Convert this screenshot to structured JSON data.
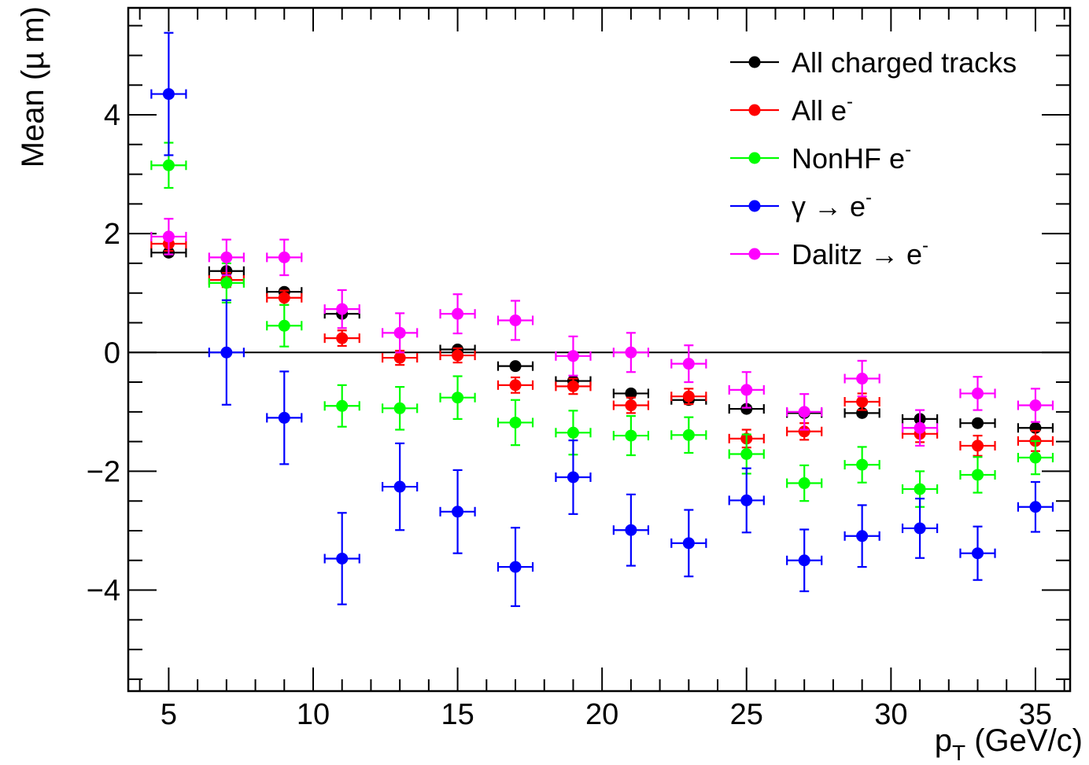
{
  "chart_data": {
    "type": "scatter",
    "xlabel": "p",
    "xlabel_sub": "T",
    "xlabel_unit": " (GeV/c)",
    "ylabel": "Mean (µ m)",
    "xlim": [
      3.6,
      36.2
    ],
    "ylim": [
      -5.7,
      5.8
    ],
    "grid": false,
    "legend_position": "top-right",
    "x_ticks": [
      5,
      10,
      15,
      20,
      25,
      30,
      35
    ],
    "x_tick_labels": [
      "5",
      "10",
      "15",
      "20",
      "25",
      "30",
      "35"
    ],
    "y_ticks": [
      -4,
      -2,
      0,
      2,
      4
    ],
    "y_tick_labels": [
      "−4",
      "−2",
      "0",
      "2",
      "4"
    ],
    "zero_line": true,
    "x": [
      5,
      7,
      9,
      11,
      13,
      15,
      17,
      19,
      21,
      23,
      25,
      27,
      29,
      31,
      33,
      35
    ],
    "x_err": 0.6,
    "series": [
      {
        "name": "All charged tracks",
        "name_suffix": "",
        "color": "#000000",
        "y": [
          1.68,
          1.37,
          1.02,
          0.65,
          null,
          0.05,
          -0.23,
          -0.48,
          -0.69,
          -0.8,
          -0.95,
          -1.02,
          -1.02,
          -1.12,
          -1.19,
          -1.27
        ],
        "y_err": [
          0.05,
          0.05,
          0.05,
          0.05,
          null,
          0.05,
          0.05,
          0.05,
          0.05,
          0.05,
          0.05,
          0.05,
          0.05,
          0.05,
          0.05,
          0.05
        ]
      },
      {
        "name": "All e",
        "name_suffix": "-",
        "color": "#ff0000",
        "y": [
          1.83,
          1.22,
          0.92,
          0.24,
          -0.09,
          -0.05,
          -0.55,
          -0.57,
          -0.89,
          -0.74,
          -1.45,
          -1.33,
          -0.83,
          -1.37,
          -1.57,
          -1.49
        ],
        "y_err": [
          0.12,
          0.12,
          0.12,
          0.13,
          0.12,
          0.12,
          0.13,
          0.13,
          0.13,
          0.13,
          0.15,
          0.14,
          0.14,
          0.14,
          0.17,
          0.17
        ]
      },
      {
        "name": "NonHF e",
        "name_suffix": "-",
        "color": "#00ff00",
        "y": [
          3.15,
          1.17,
          0.45,
          -0.9,
          -0.94,
          -0.76,
          -1.18,
          -1.35,
          -1.4,
          -1.39,
          -1.71,
          -2.2,
          -1.89,
          -2.3,
          -2.06,
          -1.77
        ],
        "y_err": [
          0.38,
          0.33,
          0.35,
          0.35,
          0.36,
          0.36,
          0.38,
          0.37,
          0.33,
          0.3,
          0.33,
          0.3,
          0.3,
          0.3,
          0.3,
          0.28
        ]
      },
      {
        "name": "γ → e",
        "name_suffix": "-",
        "color": "#0000ff",
        "y": [
          4.35,
          0.0,
          -1.1,
          -3.47,
          -2.26,
          -2.68,
          -3.61,
          -2.1,
          -2.99,
          -3.21,
          -2.49,
          -3.5,
          -3.09,
          -2.96,
          -3.38,
          -2.6
        ],
        "y_err": [
          1.03,
          0.88,
          0.78,
          0.77,
          0.73,
          0.7,
          0.66,
          0.62,
          0.6,
          0.56,
          0.54,
          0.52,
          0.52,
          0.5,
          0.45,
          0.42
        ]
      },
      {
        "name": "Dalitz → e",
        "name_suffix": "-",
        "color": "#ff00ff",
        "y": [
          1.95,
          1.6,
          1.6,
          0.73,
          0.33,
          0.65,
          0.54,
          -0.06,
          0.0,
          -0.19,
          -0.63,
          -1.0,
          -0.44,
          -1.27,
          -0.69,
          -0.89
        ],
        "y_err": [
          0.3,
          0.3,
          0.3,
          0.32,
          0.33,
          0.33,
          0.33,
          0.33,
          0.33,
          0.31,
          0.3,
          0.3,
          0.3,
          0.3,
          0.28,
          0.28
        ]
      }
    ]
  }
}
